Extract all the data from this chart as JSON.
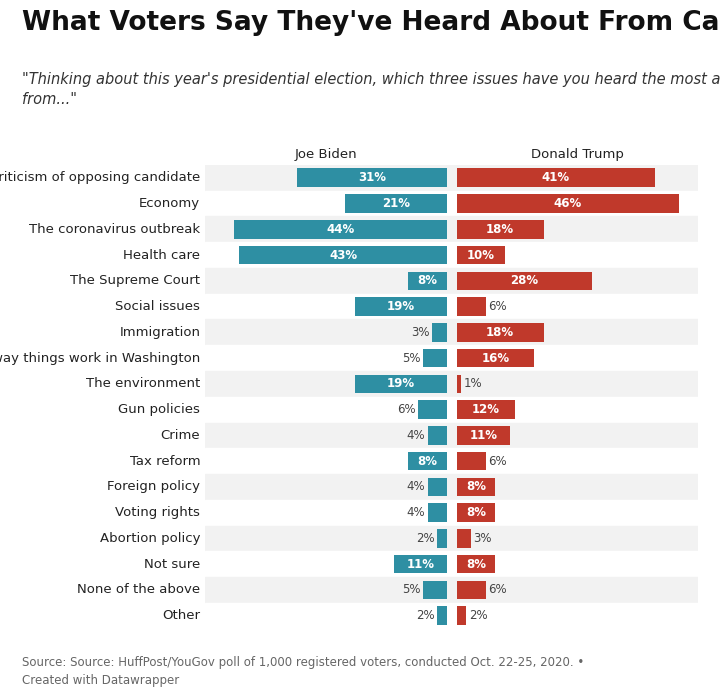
{
  "title": "What Voters Say They've Heard About From Candidates",
  "subtitle": "\"Thinking about this year's presidential election, which three issues have you heard the most about\nfrom...\"",
  "categories": [
    "Criticism of opposing candidate",
    "Economy",
    "The coronavirus outbreak",
    "Health care",
    "The Supreme Court",
    "Social issues",
    "Immigration",
    "The way things work in Washington",
    "The environment",
    "Gun policies",
    "Crime",
    "Tax reform",
    "Foreign policy",
    "Voting rights",
    "Abortion policy",
    "Not sure",
    "None of the above",
    "Other"
  ],
  "biden_values": [
    31,
    21,
    44,
    43,
    8,
    19,
    3,
    5,
    19,
    6,
    4,
    8,
    4,
    4,
    2,
    11,
    5,
    2
  ],
  "trump_values": [
    41,
    46,
    18,
    10,
    28,
    6,
    18,
    16,
    1,
    12,
    11,
    6,
    8,
    8,
    3,
    8,
    6,
    2
  ],
  "biden_color": "#2e8fa3",
  "trump_color": "#c0392b",
  "biden_label": "Joe Biden",
  "trump_label": "Donald Trump",
  "background_color": "#ffffff",
  "row_even_color": "#f2f2f2",
  "row_odd_color": "#ffffff",
  "source_text": "Source: Source: HuffPost/YouGov poll of 1,000 registered voters, conducted Oct. 22-25, 2020. •\nCreated with Datawrapper",
  "title_fontsize": 19,
  "subtitle_fontsize": 10.5,
  "label_fontsize": 9.5,
  "bar_label_fontsize": 8.5,
  "source_fontsize": 8.5,
  "biden_max": 50,
  "trump_max": 50,
  "biden_threshold": 7,
  "trump_threshold": 7
}
